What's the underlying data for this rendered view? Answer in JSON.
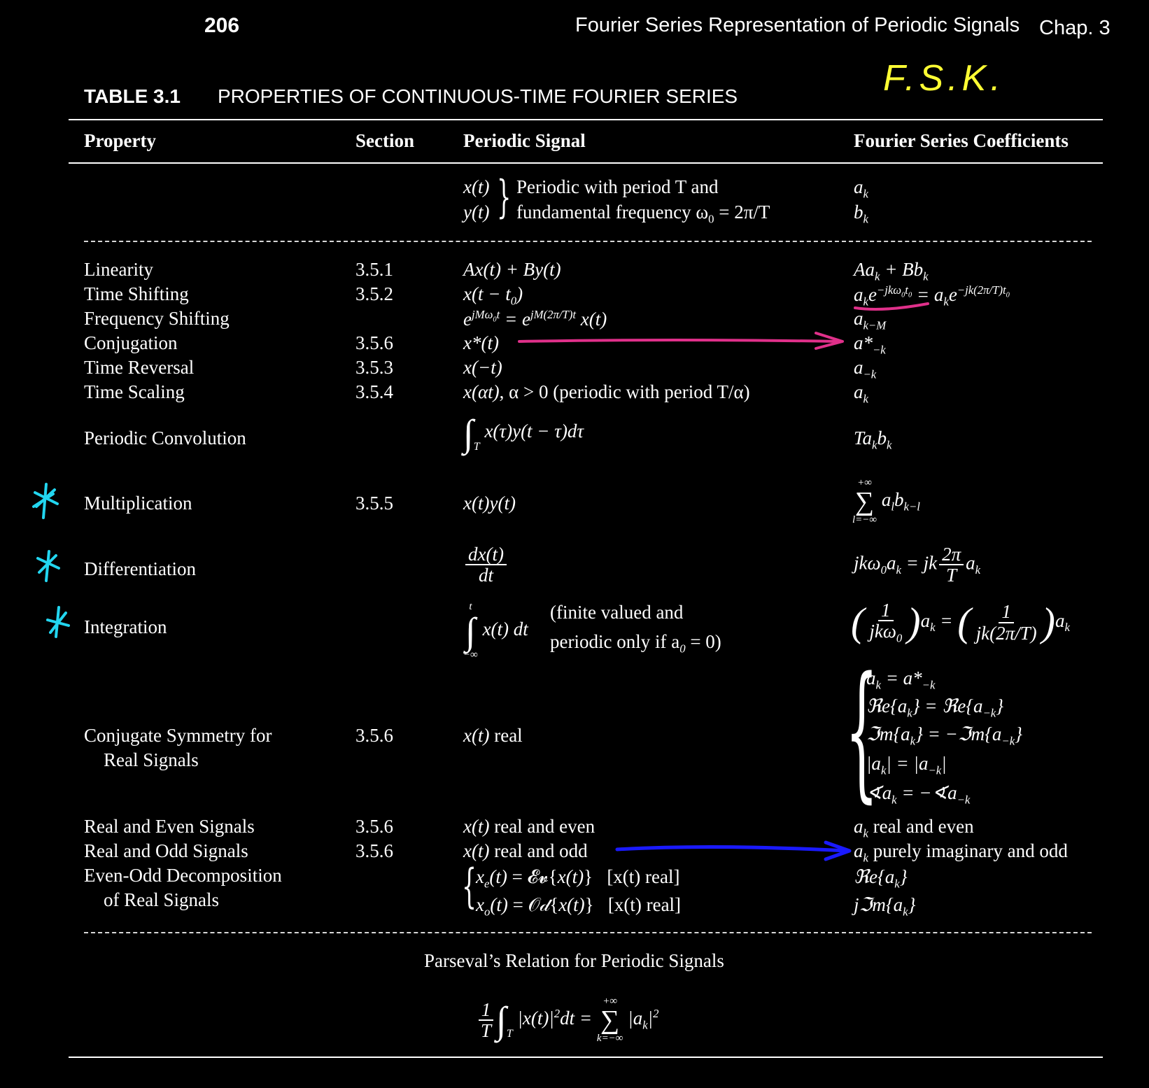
{
  "header": {
    "page_number": "206",
    "running_title": "Fourier Series Representation of Periodic Signals",
    "chapter": "Chap. 3"
  },
  "handwritten_note": "F.S.K.",
  "table": {
    "label": "TABLE 3.1",
    "title": "PROPERTIES OF CONTINUOUS-TIME FOURIER SERIES",
    "columns": [
      "Property",
      "Section",
      "Periodic Signal",
      "Fourier Series Coefficients"
    ],
    "intro": {
      "signal_x": "x(t)",
      "signal_y": "y(t)",
      "desc_line1": "Periodic with period T and",
      "desc_line2_prefix": "fundamental frequency ω",
      "desc_line2_suffix": " = 2π/T",
      "coef_a": "a",
      "coef_b": "b"
    },
    "rows": [
      {
        "property": "Linearity",
        "section": "3.5.1"
      },
      {
        "property": "Time Shifting",
        "section": "3.5.2"
      },
      {
        "property": "Frequency Shifting",
        "section": ""
      },
      {
        "property": "Conjugation",
        "section": "3.5.6"
      },
      {
        "property": "Time Reversal",
        "section": "3.5.3"
      },
      {
        "property": "Time Scaling",
        "section": "3.5.4"
      },
      {
        "property": "Periodic Convolution",
        "section": ""
      },
      {
        "property": "Multiplication",
        "section": "3.5.5"
      },
      {
        "property": "Differentiation",
        "section": ""
      },
      {
        "property": "Integration",
        "section": ""
      },
      {
        "property": "Conjugate Symmetry for",
        "property_line2": "Real Signals",
        "section": "3.5.6"
      },
      {
        "property": "Real and Even Signals",
        "section": "3.5.6"
      },
      {
        "property": "Real and Odd Signals",
        "section": "3.5.6"
      },
      {
        "property": "Even-Odd Decomposition",
        "property_line2": "of Real Signals",
        "section": ""
      }
    ],
    "text": {
      "time_scaling_note": ", α > 0 (periodic with period T/α)",
      "integration_note_1": "(finite valued and",
      "integration_note_2": "periodic only if a",
      "integration_note_3": " = 0)",
      "real": " real",
      "real_and_even": " real and even",
      "real_and_odd": " real and odd",
      "coef_real_even": " real and even",
      "coef_imag_odd": " purely imaginary and odd",
      "real_bracket": "[x(t) real]"
    },
    "parseval_title": "Parseval’s Relation for Periodic Signals"
  },
  "colors": {
    "annotation_yellow": "#ffff33",
    "annotation_magenta": "#e0308a",
    "annotation_blue": "#1a1aff",
    "annotation_cyan": "#22d6f0"
  }
}
